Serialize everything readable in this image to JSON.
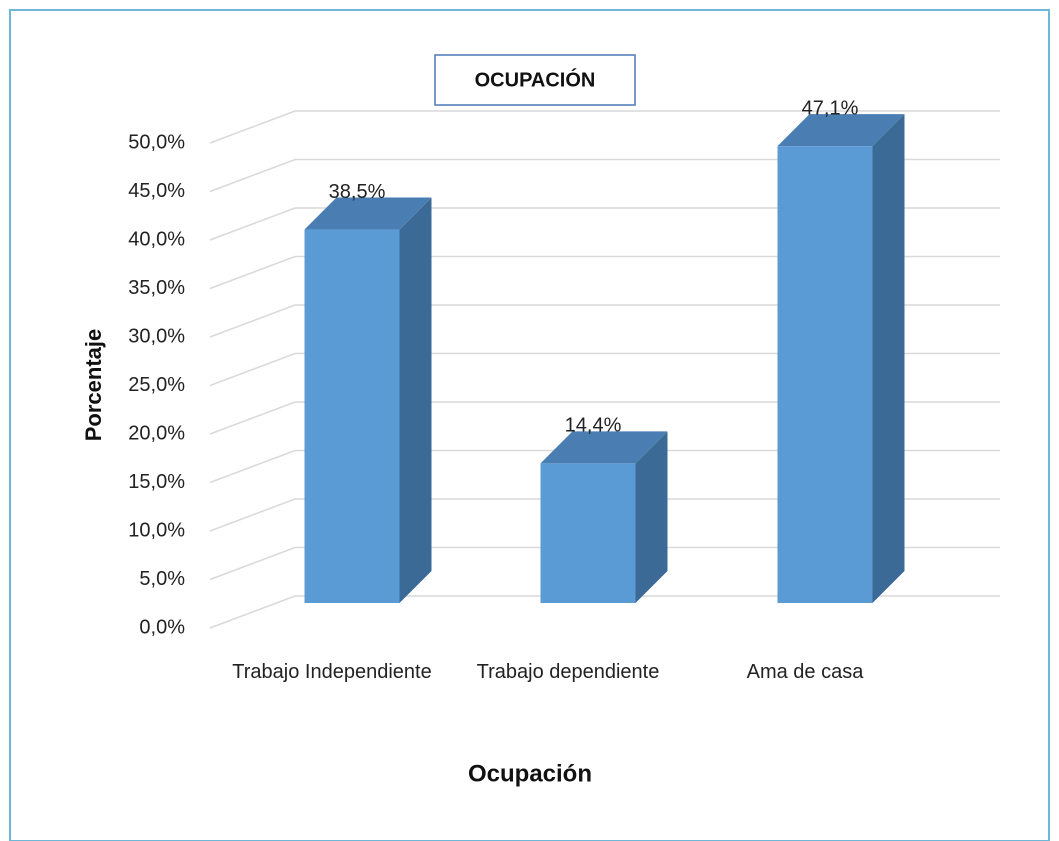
{
  "chart_data": {
    "type": "bar3d",
    "title": "OCUPACIÓN",
    "x_label": "Ocupación",
    "y_label": "Porcentaje",
    "categories": [
      "Trabajo Independiente",
      "Trabajo dependiente",
      "Ama de casa"
    ],
    "values": [
      38.5,
      14.4,
      47.1
    ],
    "value_labels": [
      "38,5%",
      "14,4%",
      "47,1%"
    ],
    "color": "#5b9bd5",
    "ylim": [
      0,
      50
    ],
    "yticks": [
      {
        "value": 0,
        "label": "0,0%"
      },
      {
        "value": 5,
        "label": "5,0%"
      },
      {
        "value": 10,
        "label": "10,0%"
      },
      {
        "value": 15,
        "label": "15,0%"
      },
      {
        "value": 20,
        "label": "20,0%"
      },
      {
        "value": 25,
        "label": "25,0%"
      },
      {
        "value": 30,
        "label": "30,0%"
      },
      {
        "value": 35,
        "label": "35,0%"
      },
      {
        "value": 40,
        "label": "40,0%"
      },
      {
        "value": 45,
        "label": "45,0%"
      },
      {
        "value": 50,
        "label": "50,0%"
      }
    ],
    "grid": true
  }
}
